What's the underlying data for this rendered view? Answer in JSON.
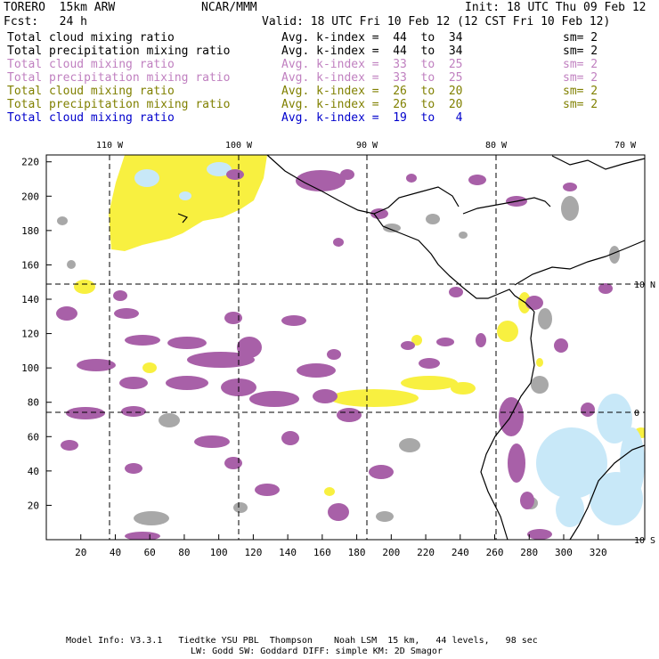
{
  "header": {
    "model": "TORERO  15km ARW",
    "org": "NCAR/MMM",
    "init": "Init: 18 UTC Thu 09 Feb 12",
    "fcst": "Fcst:   24 h",
    "valid": "Valid: 18 UTC Fri 10 Feb 12 (12 CST Fri 10 Feb 12)"
  },
  "legend": [
    {
      "field": "Total cloud mixing ratio",
      "kindex": "Avg. k-index =  44  to  34",
      "sm": "sm= 2",
      "color": "#000000"
    },
    {
      "field": "Total precipitation mixing ratio",
      "kindex": "Avg. k-index =  44  to  34",
      "sm": "sm= 2",
      "color": "#000000"
    },
    {
      "field": "Total cloud mixing ratio",
      "kindex": "Avg. k-index =  33  to  25",
      "sm": "sm= 2",
      "color": "#c080c0"
    },
    {
      "field": "Total precipitation mixing ratio",
      "kindex": "Avg. k-index =  33  to  25",
      "sm": "sm= 2",
      "color": "#c080c0"
    },
    {
      "field": "Total cloud mixing ratio",
      "kindex": "Avg. k-index =  26  to  20",
      "sm": "sm= 2",
      "color": "#808000"
    },
    {
      "field": "Total precipitation mixing ratio",
      "kindex": "Avg. k-index =  26  to  20",
      "sm": "sm= 2",
      "color": "#808000"
    },
    {
      "field": "Total cloud mixing ratio",
      "kindex": "Avg. k-index =  19  to   4",
      "sm": "",
      "color": "#0000cc"
    }
  ],
  "axes": {
    "top_labels": [
      "110 W",
      "100 W",
      "90 W",
      "80 W",
      "70 W"
    ],
    "right_labels": [
      "10 N",
      "0",
      "10 S"
    ],
    "x_ticks": [
      "20",
      "40",
      "60",
      "80",
      "100",
      "120",
      "140",
      "160",
      "180",
      "200",
      "220",
      "240",
      "260",
      "280",
      "300",
      "320"
    ],
    "y_ticks": [
      "20",
      "40",
      "60",
      "80",
      "100",
      "120",
      "140",
      "160",
      "180",
      "200",
      "220"
    ]
  },
  "footer": {
    "line1": "Model Info: V3.3.1   Tiedtke YSU PBL  Thompson    Noah LSM  15 km,   44 levels,   98 sec",
    "line2": "LW: Godd SW: Goddard DIFF: simple KM: 2D Smagor"
  },
  "colors": {
    "purple": "#a860a8",
    "yellow": "#f8f040",
    "gray": "#a8a8a8",
    "cyan": "#c8e8f8"
  }
}
